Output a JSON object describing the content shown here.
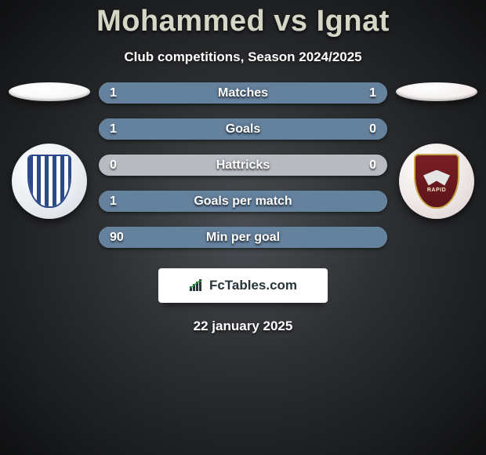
{
  "title": "Mohammed vs Ignat",
  "subtitle": "Club competitions, Season 2024/2025",
  "date": "22 january 2025",
  "branding": "FcTables.com",
  "colors": {
    "title": "#d6d6c6",
    "text_white": "#ffffff",
    "bar_fill": "#64819d",
    "bar_track": "#b8bcc2",
    "bg_center": "#4a4d52",
    "bg_edge": "#0f1011",
    "flag_left": "#f5f7f6",
    "flag_right": "#f3eceb",
    "brand_text": "#27343a",
    "brand_accent": "#2aa038"
  },
  "left": {
    "flag_color": "#f5f7f6",
    "club_name": "CSM Iasi",
    "badge_primary": "#2a4a8a",
    "badge_bg": "#ffffff"
  },
  "right": {
    "flag_color": "#f3eceb",
    "club_name": "Rapid",
    "badge_primary": "#7a1e24",
    "badge_accent": "#c9a84a",
    "badge_label": "RAPID"
  },
  "stats": [
    {
      "label": "Matches",
      "left_value": "1",
      "right_value": "1",
      "left_pct": 50,
      "right_pct": 50
    },
    {
      "label": "Goals",
      "left_value": "1",
      "right_value": "0",
      "left_pct": 85,
      "right_pct": 15
    },
    {
      "label": "Hattricks",
      "left_value": "0",
      "right_value": "0",
      "left_pct": 0,
      "right_pct": 0
    },
    {
      "label": "Goals per match",
      "left_value": "1",
      "right_value": "",
      "left_pct": 100,
      "right_pct": 0
    },
    {
      "label": "Min per goal",
      "left_value": "90",
      "right_value": "",
      "left_pct": 100,
      "right_pct": 0
    }
  ]
}
